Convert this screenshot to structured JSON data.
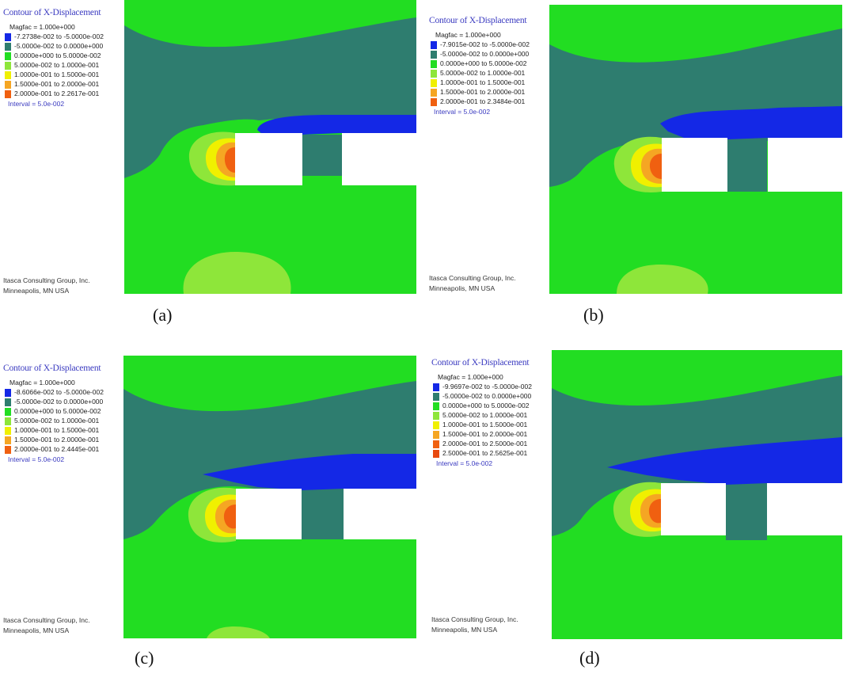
{
  "panels": [
    {
      "id": "a",
      "caption": "(a)",
      "legend": {
        "title": "Contour of X-Displacement",
        "magfac": "Magfac = 1.000e+000",
        "rows": [
          {
            "label": "-7.2738e-002 to -5.0000e-002",
            "color": "#1428e6"
          },
          {
            "label": "-5.0000e-002 to  0.0000e+000",
            "color": "#2e7d6f"
          },
          {
            "label": "0.0000e+000 to  5.0000e-002",
            "color": "#22dd22"
          },
          {
            "label": "5.0000e-002 to  1.0000e-001",
            "color": "#8ee63a"
          },
          {
            "label": "1.0000e-001 to  1.5000e-001",
            "color": "#f0f000"
          },
          {
            "label": "1.5000e-001 to  2.0000e-001",
            "color": "#f5a623"
          },
          {
            "label": "2.0000e-001 to  2.2617e-001",
            "color": "#f06010"
          }
        ],
        "interval": "Interval =  5.0e-002",
        "credit_1": "Itasca Consulting Group, Inc.",
        "credit_2": "Minneapolis, MN  USA"
      }
    },
    {
      "id": "b",
      "caption": "(b)",
      "legend": {
        "title": "Contour of X-Displacement",
        "magfac": "Magfac = 1.000e+000",
        "rows": [
          {
            "label": "-7.9015e-002 to -5.0000e-002",
            "color": "#1428e6"
          },
          {
            "label": "-5.0000e-002 to  0.0000e+000",
            "color": "#2e7d6f"
          },
          {
            "label": "0.0000e+000 to  5.0000e-002",
            "color": "#22dd22"
          },
          {
            "label": "5.0000e-002 to  1.0000e-001",
            "color": "#8ee63a"
          },
          {
            "label": "1.0000e-001 to  1.5000e-001",
            "color": "#f0f000"
          },
          {
            "label": "1.5000e-001 to  2.0000e-001",
            "color": "#f5a623"
          },
          {
            "label": "2.0000e-001 to  2.3484e-001",
            "color": "#f06010"
          }
        ],
        "interval": "Interval =  5.0e-002",
        "credit_1": "Itasca Consulting Group, Inc.",
        "credit_2": "Minneapolis, MN  USA"
      }
    },
    {
      "id": "c",
      "caption": "(c)",
      "legend": {
        "title": "Contour of X-Displacement",
        "magfac": "Magfac = 1.000e+000",
        "rows": [
          {
            "label": "-8.6066e-002 to -5.0000e-002",
            "color": "#1428e6"
          },
          {
            "label": "-5.0000e-002 to  0.0000e+000",
            "color": "#2e7d6f"
          },
          {
            "label": "0.0000e+000 to  5.0000e-002",
            "color": "#22dd22"
          },
          {
            "label": "5.0000e-002 to  1.0000e-001",
            "color": "#8ee63a"
          },
          {
            "label": "1.0000e-001 to  1.5000e-001",
            "color": "#f0f000"
          },
          {
            "label": "1.5000e-001 to  2.0000e-001",
            "color": "#f5a623"
          },
          {
            "label": "2.0000e-001 to  2.4445e-001",
            "color": "#f06010"
          }
        ],
        "interval": "Interval =  5.0e-002",
        "credit_1": "Itasca Consulting Group, Inc.",
        "credit_2": "Minneapolis, MN  USA"
      }
    },
    {
      "id": "d",
      "caption": "(d)",
      "legend": {
        "title": "Contour of X-Displacement",
        "magfac": "Magfac = 1.000e+000",
        "rows": [
          {
            "label": "-9.9697e-002 to -5.0000e-002",
            "color": "#1428e6"
          },
          {
            "label": "-5.0000e-002 to  0.0000e+000",
            "color": "#2e7d6f"
          },
          {
            "label": "0.0000e+000 to  5.0000e-002",
            "color": "#22dd22"
          },
          {
            "label": "5.0000e-002 to  1.0000e-001",
            "color": "#8ee63a"
          },
          {
            "label": "1.0000e-001 to  1.5000e-001",
            "color": "#f0f000"
          },
          {
            "label": "1.5000e-001 to  2.0000e-001",
            "color": "#f5a623"
          },
          {
            "label": "2.0000e-001 to  2.5000e-001",
            "color": "#f06010"
          },
          {
            "label": "2.5000e-001 to  2.5625e-001",
            "color": "#e84a10"
          }
        ],
        "interval": "Interval =  5.0e-002",
        "credit_1": "Itasca Consulting Group, Inc.",
        "credit_2": "Minneapolis, MN  USA"
      }
    }
  ],
  "colors": {
    "blue": "#1428e6",
    "teal": "#2e7d6f",
    "green": "#22dd22",
    "lightgreen": "#8ee63a",
    "yellow": "#f0f000",
    "orange": "#f5a623",
    "red": "#f06010"
  }
}
